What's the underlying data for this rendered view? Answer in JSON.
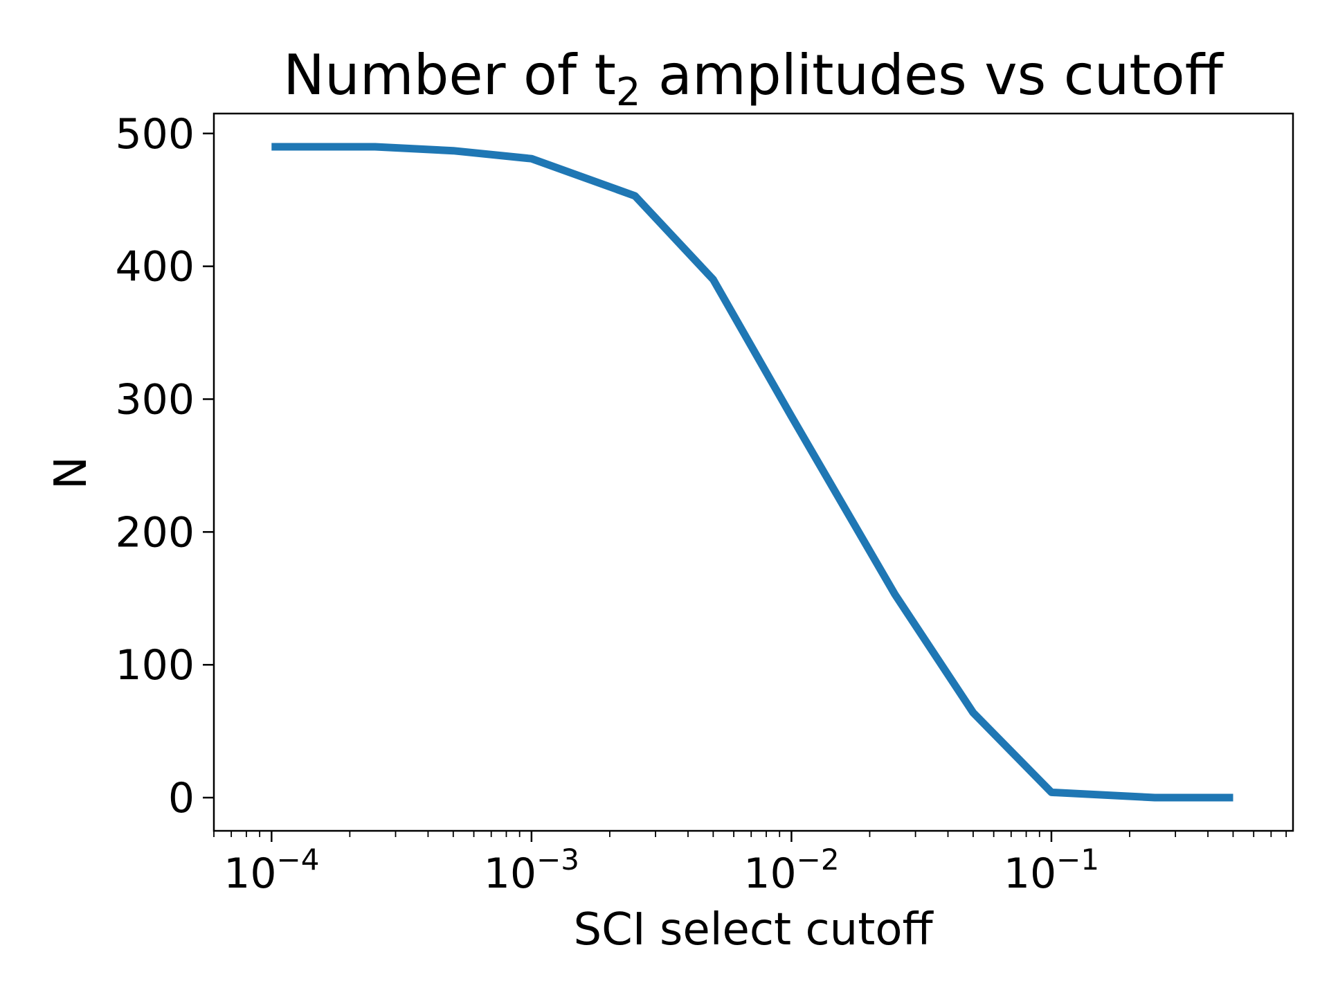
{
  "chart_data": {
    "type": "line",
    "title": {
      "prefix": "Number of t",
      "subscript": "2",
      "suffix": " amplitudes vs cutoff"
    },
    "xlabel": "SCI select cutoff",
    "ylabel": "N",
    "xscale": "log",
    "xlim": [
      6e-05,
      0.85
    ],
    "ylim": [
      -25,
      515
    ],
    "grid": false,
    "legend": "none",
    "yticks": [
      0,
      100,
      200,
      300,
      400,
      500
    ],
    "xticks": [
      {
        "value": 0.0001,
        "base": "10",
        "exponent": "−4"
      },
      {
        "value": 0.001,
        "base": "10",
        "exponent": "−3"
      },
      {
        "value": 0.01,
        "base": "10",
        "exponent": "−2"
      },
      {
        "value": 0.1,
        "base": "10",
        "exponent": "−1"
      }
    ],
    "series": [
      {
        "color": "#1f77b4",
        "x": [
          0.0001,
          0.00025,
          0.0005,
          0.001,
          0.0025,
          0.005,
          0.01,
          0.025,
          0.05,
          0.1,
          0.25,
          0.5
        ],
        "y": [
          490,
          490,
          487,
          481,
          453,
          390,
          287,
          153,
          64,
          4,
          0,
          0
        ]
      }
    ]
  }
}
